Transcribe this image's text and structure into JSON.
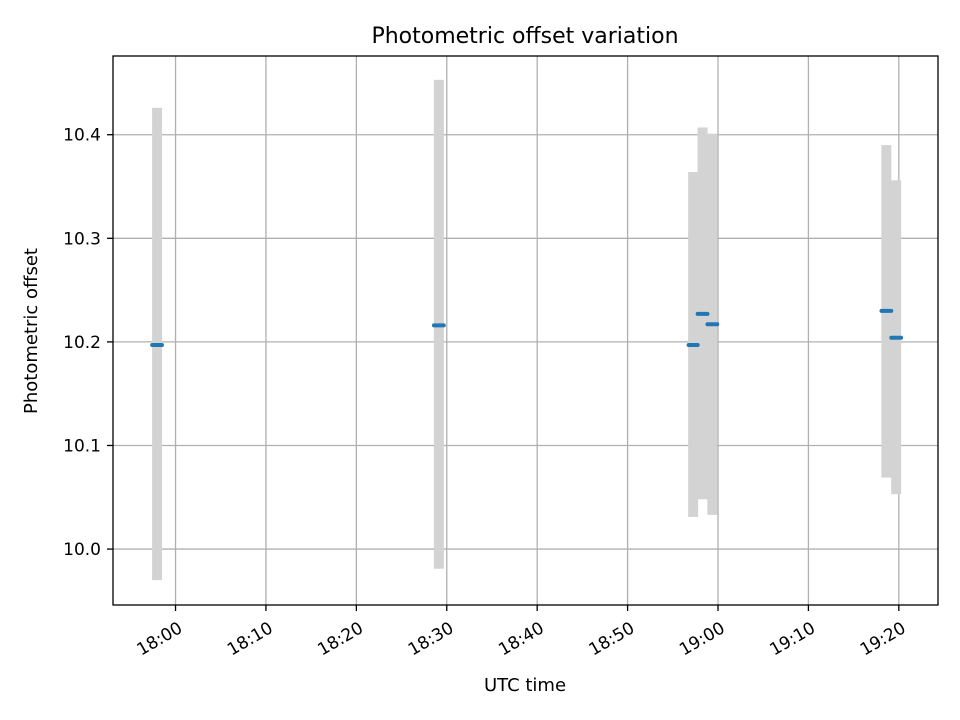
{
  "chart_data": {
    "type": "scatter",
    "title": "Photometric offset variation",
    "xlabel": "UTC time",
    "ylabel": "Photometric offset",
    "grid": true,
    "colors": {
      "point": "#1f77b4",
      "errorbar": "#d3d3d3",
      "grid": "#b0b0b0",
      "axes": "#000000"
    },
    "xlim": [
      "17:53:05",
      "19:24:20"
    ],
    "ylim": [
      9.946,
      10.476
    ],
    "x_ticks": [
      "18:00",
      "18:10",
      "18:20",
      "18:30",
      "18:40",
      "18:50",
      "19:00",
      "19:10",
      "19:20"
    ],
    "y_ticks": [
      "10.0",
      "10.1",
      "10.2",
      "10.3",
      "10.4"
    ],
    "points": [
      {
        "t_start": "17:57:25",
        "t_end": "17:58:30",
        "y": 10.197,
        "y_low": 9.97,
        "y_high": 10.426
      },
      {
        "t_start": "18:28:35",
        "t_end": "18:29:40",
        "y": 10.216,
        "y_low": 9.981,
        "y_high": 10.453
      },
      {
        "t_start": "18:56:45",
        "t_end": "18:57:45",
        "y": 10.197,
        "y_low": 10.031,
        "y_high": 10.364
      },
      {
        "t_start": "18:57:45",
        "t_end": "18:58:50",
        "y": 10.227,
        "y_low": 10.048,
        "y_high": 10.407
      },
      {
        "t_start": "18:58:50",
        "t_end": "18:59:55",
        "y": 10.217,
        "y_low": 10.033,
        "y_high": 10.401
      },
      {
        "t_start": "19:18:05",
        "t_end": "19:19:10",
        "y": 10.23,
        "y_low": 10.069,
        "y_high": 10.39
      },
      {
        "t_start": "19:19:10",
        "t_end": "19:20:15",
        "y": 10.204,
        "y_low": 10.053,
        "y_high": 10.356
      }
    ]
  }
}
